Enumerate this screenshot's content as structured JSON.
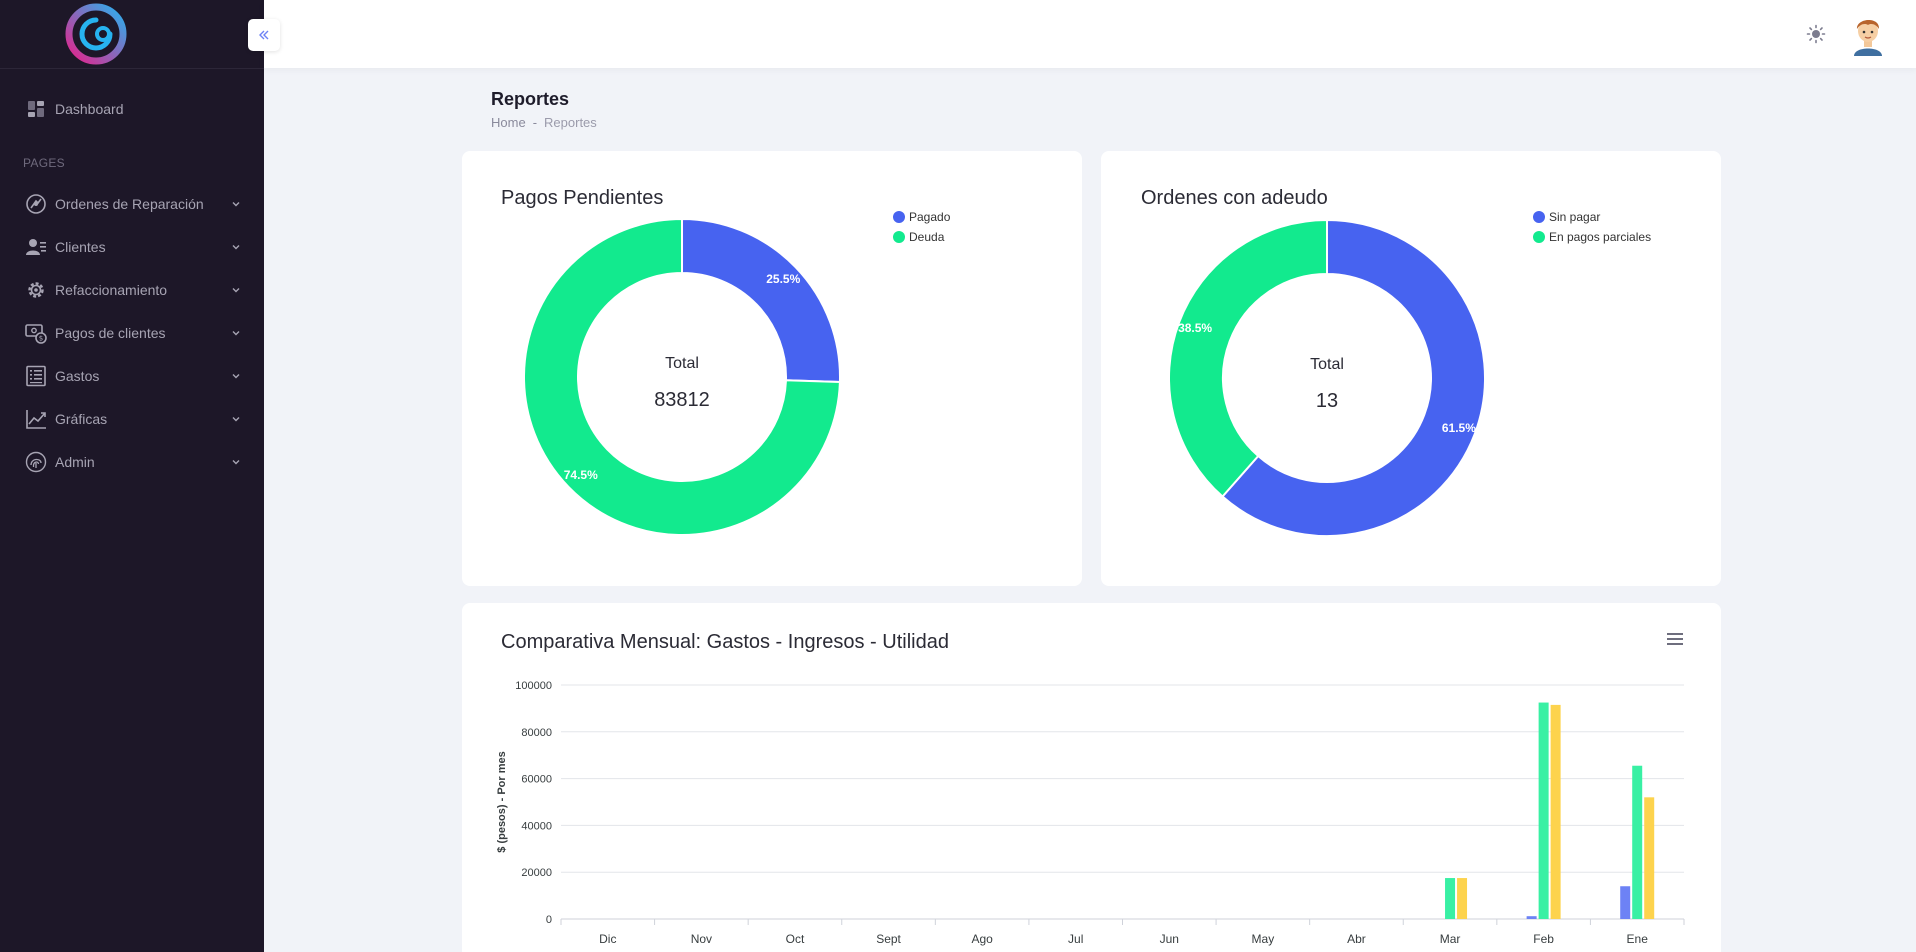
{
  "sidebar": {
    "section_label": "PAGES",
    "items": [
      {
        "label": "Dashboard",
        "icon": "dashboard-icon"
      },
      {
        "label": "Ordenes de Reparación",
        "icon": "repair-orders-icon"
      },
      {
        "label": "Clientes",
        "icon": "clients-icon"
      },
      {
        "label": "Refaccionamiento",
        "icon": "gear-icon"
      },
      {
        "label": "Pagos de clientes",
        "icon": "payments-icon"
      },
      {
        "label": "Gastos",
        "icon": "expenses-icon"
      },
      {
        "label": "Gráficas",
        "icon": "chart-line-icon"
      },
      {
        "label": "Admin",
        "icon": "fingerprint-icon"
      }
    ]
  },
  "header": {
    "theme_icon": "sun-icon"
  },
  "page": {
    "title": "Reportes",
    "breadcrumb_home": "Home",
    "breadcrumb_sep": "-",
    "breadcrumb_current": "Reportes"
  },
  "chart_data": [
    {
      "type": "pie",
      "title": "Pagos Pendientes",
      "labels": [
        "Pagado",
        "Deuda"
      ],
      "values": [
        25.5,
        74.5
      ],
      "value_labels": [
        "25.5%",
        "74.5%"
      ],
      "colors": [
        "#4763f0",
        "#12ea8e"
      ],
      "center_label": "Total",
      "center_value": "83812",
      "legend_position": "top-right"
    },
    {
      "type": "pie",
      "title": "Ordenes con adeudo",
      "labels": [
        "Sin pagar",
        "En pagos parciales"
      ],
      "values": [
        61.5,
        38.5
      ],
      "value_labels": [
        "61.5%",
        "38.5%"
      ],
      "colors": [
        "#4763f0",
        "#12ea8e"
      ],
      "center_label": "Total",
      "center_value": "13",
      "legend_position": "top-right"
    },
    {
      "type": "bar",
      "title": "Comparativa Mensual: Gastos - Ingresos - Utilidad",
      "ylabel": "$ (pesos) - Por mes",
      "xlabel": "",
      "categories": [
        "Dic",
        "Nov",
        "Oct",
        "Sept",
        "Ago",
        "Jul",
        "Jun",
        "May",
        "Abr",
        "Mar",
        "Feb",
        "Ene"
      ],
      "yticks": [
        "0",
        "20000",
        "40000",
        "60000",
        "80000",
        "100000"
      ],
      "ylim": [
        0,
        100000
      ],
      "grid": true,
      "series": [
        {
          "values": [
            0,
            0,
            0,
            0,
            0,
            0,
            0,
            0,
            0,
            0,
            1200,
            14000
          ],
          "color": "#6d82f5"
        },
        {
          "values": [
            0,
            0,
            0,
            0,
            0,
            0,
            0,
            0,
            0,
            17500,
            92500,
            65500
          ],
          "color": "#39f0a4"
        },
        {
          "values": [
            0,
            0,
            0,
            0,
            0,
            0,
            0,
            0,
            0,
            17500,
            91500,
            52000
          ],
          "color": "#fdd34d"
        }
      ]
    }
  ]
}
